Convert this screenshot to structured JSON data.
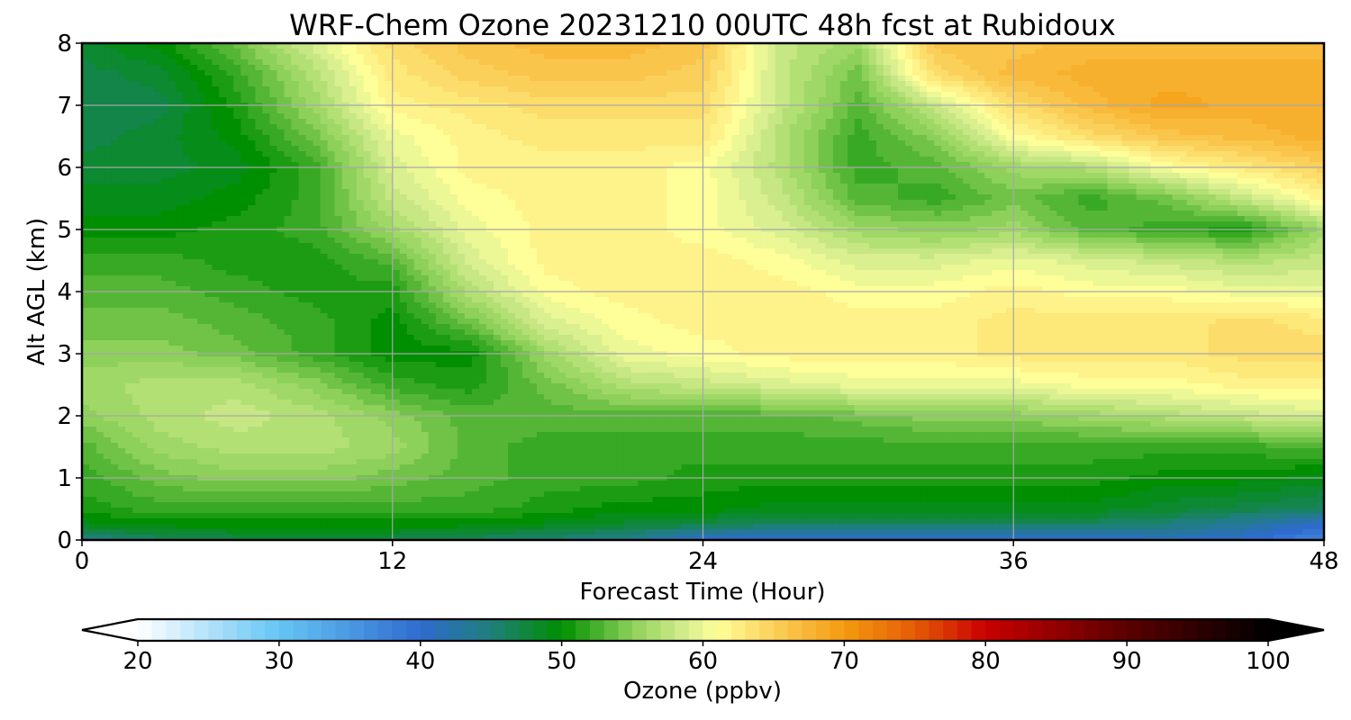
{
  "chart_data": {
    "type": "heatmap",
    "title": "WRF-Chem Ozone  20231210 00UTC 48h fcst at Rubidoux",
    "xlabel": "Forecast Time (Hour)",
    "ylabel": "Alt AGL (km)",
    "xlim": [
      0,
      48
    ],
    "ylim": [
      0,
      8
    ],
    "x_ticks": [
      0,
      12,
      24,
      36,
      48
    ],
    "y_ticks": [
      0,
      1,
      2,
      3,
      4,
      5,
      6,
      7,
      8
    ],
    "grid": true,
    "x": [
      0,
      3,
      6,
      9,
      12,
      15,
      18,
      21,
      24,
      27,
      30,
      33,
      36,
      39,
      42,
      45,
      48
    ],
    "y": [
      0,
      0.25,
      0.5,
      1,
      1.5,
      2,
      2.5,
      3,
      3.5,
      4,
      4.5,
      5,
      5.5,
      6,
      6.5,
      7,
      7.5,
      8
    ],
    "z_units": "ppbv",
    "z": [
      [
        44,
        46,
        47,
        47,
        47,
        46,
        45,
        44,
        40,
        40,
        40,
        40,
        40,
        40,
        41,
        40,
        37
      ],
      [
        49,
        50,
        50,
        50,
        50,
        50,
        49,
        48,
        47,
        46,
        46,
        46,
        46,
        46,
        45,
        43,
        40
      ],
      [
        51,
        52,
        52,
        52,
        52,
        52,
        51,
        50,
        50,
        49,
        49,
        49,
        49,
        49,
        48,
        47,
        46
      ],
      [
        52,
        54,
        55,
        55,
        54,
        53,
        52,
        52,
        51,
        51,
        51,
        51,
        51,
        51,
        50,
        50,
        49
      ],
      [
        53,
        56,
        57,
        57,
        56,
        53,
        52,
        52,
        52,
        52,
        52,
        52,
        52,
        52,
        52,
        52,
        53
      ],
      [
        55,
        57,
        58,
        57,
        55,
        53,
        53,
        53,
        53,
        53,
        54,
        55,
        55,
        56,
        57,
        58,
        59
      ],
      [
        56,
        57,
        57,
        55,
        52,
        51,
        54,
        57,
        58,
        59,
        60,
        60,
        60,
        61,
        61,
        62,
        62
      ],
      [
        55,
        55,
        54,
        52,
        50,
        50,
        56,
        60,
        61,
        62,
        62,
        62,
        63,
        63,
        63,
        64,
        64
      ],
      [
        54,
        54,
        53,
        52,
        50,
        54,
        59,
        61,
        62,
        62,
        62,
        62,
        63,
        63,
        63,
        64,
        63
      ],
      [
        53,
        53,
        52,
        51,
        51,
        57,
        61,
        62,
        62,
        62,
        61,
        61,
        62,
        61,
        61,
        60,
        60
      ],
      [
        52,
        52,
        51,
        51,
        53,
        59,
        62,
        62,
        62,
        61,
        59,
        59,
        60,
        59,
        58,
        57,
        58
      ],
      [
        50,
        50,
        51,
        52,
        56,
        60,
        62,
        62,
        61,
        59,
        56,
        55,
        56,
        53,
        52,
        51,
        56
      ],
      [
        49,
        49,
        50,
        52,
        58,
        61,
        62,
        62,
        61,
        58,
        53,
        52,
        54,
        52,
        54,
        58,
        62
      ],
      [
        48,
        48,
        49,
        52,
        59,
        62,
        62,
        62,
        61,
        57,
        52,
        53,
        56,
        57,
        61,
        63,
        65
      ],
      [
        47,
        48,
        50,
        54,
        60,
        62,
        63,
        63,
        63,
        57,
        52,
        55,
        61,
        64,
        66,
        67,
        68
      ],
      [
        47,
        47,
        51,
        56,
        62,
        63,
        64,
        64,
        64,
        58,
        53,
        58,
        64,
        67,
        69,
        68,
        68
      ],
      [
        47,
        48,
        52,
        57,
        63,
        65,
        66,
        66,
        65,
        58,
        54,
        64,
        67,
        68,
        68,
        68,
        68
      ],
      [
        48,
        50,
        54,
        59,
        64,
        66,
        67,
        67,
        66,
        58,
        56,
        66,
        66,
        67,
        67,
        67,
        67
      ]
    ],
    "colorbar": {
      "label": "Ozone  (ppbv)",
      "min": 20,
      "max": 100,
      "ticks": [
        20,
        30,
        40,
        50,
        60,
        70,
        80,
        90,
        100
      ],
      "extend": "both",
      "stops": [
        {
          "v": 20,
          "c": "#ffffff"
        },
        {
          "v": 30,
          "c": "#66c5f4"
        },
        {
          "v": 40,
          "c": "#2f6bcf"
        },
        {
          "v": 45,
          "c": "#1f7f7a"
        },
        {
          "v": 50,
          "c": "#008f00"
        },
        {
          "v": 55,
          "c": "#8dd05a"
        },
        {
          "v": 59,
          "c": "#d9ef90"
        },
        {
          "v": 61,
          "c": "#ffff9a"
        },
        {
          "v": 65,
          "c": "#fbd05a"
        },
        {
          "v": 70,
          "c": "#f59a10"
        },
        {
          "v": 75,
          "c": "#e55b06"
        },
        {
          "v": 80,
          "c": "#c80000"
        },
        {
          "v": 90,
          "c": "#5a0000"
        },
        {
          "v": 100,
          "c": "#000000"
        }
      ]
    }
  }
}
